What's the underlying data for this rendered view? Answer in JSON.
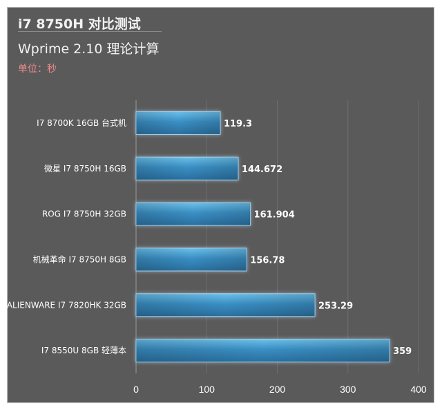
{
  "colors": {
    "background": "#5a5a5a",
    "bar": "#3a8fc4",
    "title": "#f2f2f2",
    "unit": "#f08b8b"
  },
  "chart_data": {
    "type": "bar",
    "orientation": "horizontal",
    "title": "i7 8750H 对比测试",
    "subtitle": "Wprime 2.10 理论计算",
    "unit_label": "单位：秒",
    "categories": [
      "I7 8700K 16GB 台式机",
      "微星 I7 8750H 16GB",
      "ROG I7 8750H 32GB",
      "机械革命 I7 8750H 8GB",
      "ALIENWARE I7 7820HK 32GB",
      "I7 8550U 8GB 轻薄本"
    ],
    "values": [
      119.3,
      144.672,
      161.904,
      156.78,
      253.29,
      359
    ],
    "value_labels": [
      "119.3",
      "144.672",
      "161.904",
      "156.78",
      "253.29",
      "359"
    ],
    "xlim": [
      0,
      400
    ],
    "xticks": [
      0,
      100,
      200,
      300,
      400
    ],
    "grid": true,
    "legend": "none"
  }
}
